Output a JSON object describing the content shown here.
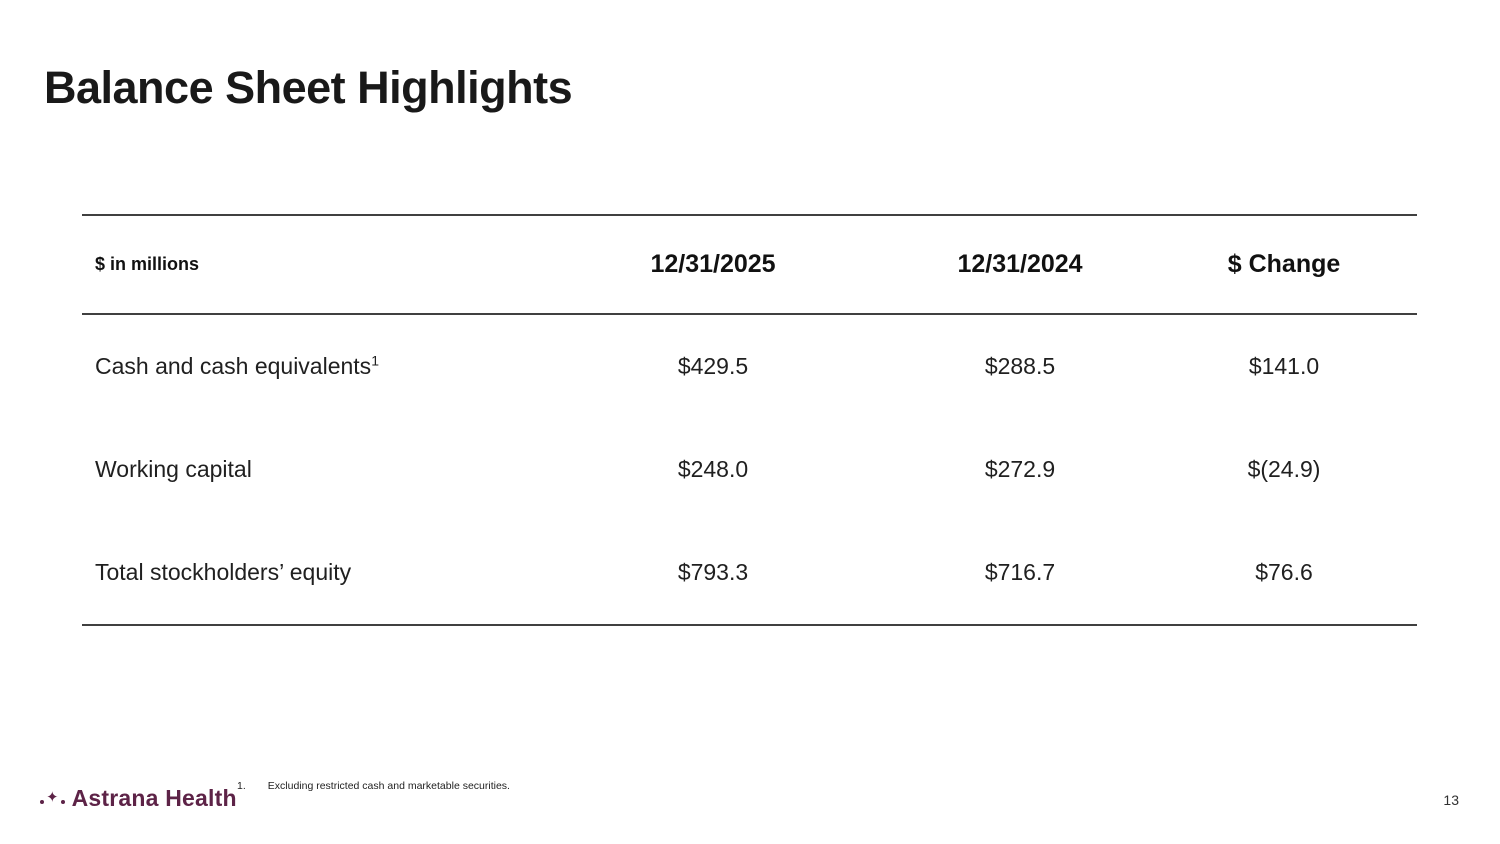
{
  "slide": {
    "title": "Balance Sheet Highlights",
    "page_number": "13"
  },
  "table": {
    "unit_label": "$ in millions",
    "columns": [
      "12/31/2025",
      "12/31/2024",
      "$ Change"
    ],
    "rows": [
      {
        "label": "Cash and cash equivalents",
        "footnote_sup": "1",
        "values": [
          "$429.5",
          "$288.5",
          "$141.0"
        ]
      },
      {
        "label": "Working capital",
        "footnote_sup": "",
        "values": [
          "$248.0",
          "$272.9",
          "$(24.9)"
        ]
      },
      {
        "label": "Total stockholders’ equity",
        "footnote_sup": "",
        "values": [
          "$793.3",
          "$716.7",
          "$76.6"
        ]
      }
    ]
  },
  "footnote": {
    "index": "1.",
    "text": "Excluding restricted cash and marketable securities."
  },
  "logo": {
    "name": "Astrana Health",
    "mark_glyph": "✦",
    "brand_color": "#5d2347"
  }
}
